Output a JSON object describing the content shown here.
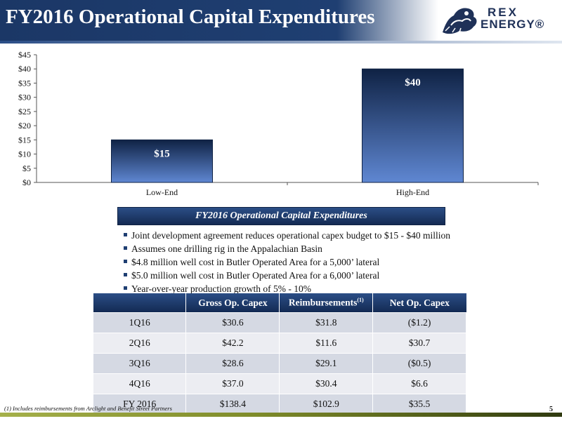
{
  "header": {
    "title": "FY2016 Operational Capital Expenditures",
    "logo_line1": "REX",
    "logo_line2": "ENERGY®"
  },
  "chart_data": {
    "type": "bar",
    "title": "",
    "xlabel": "",
    "ylabel": "",
    "categories": [
      "Low-End",
      "High-End"
    ],
    "values": [
      15,
      40
    ],
    "value_labels": [
      "$15",
      "$40"
    ],
    "ylim": [
      0,
      45
    ],
    "yticks": [
      0,
      5,
      10,
      15,
      20,
      25,
      30,
      35,
      40,
      45
    ],
    "ytick_labels": [
      "$0",
      "$5",
      "$10",
      "$15",
      "$20",
      "$25",
      "$30",
      "$35",
      "$40",
      "$45"
    ],
    "grid": false,
    "bar_color_top": "#0f2244",
    "bar_color_bottom": "#5f87d2"
  },
  "section": {
    "banner": "FY2016 Operational Capital Expenditures",
    "bullets": [
      "Joint development agreement reduces operational capex budget to $15 - $40 million",
      "Assumes one drilling rig in the Appalachian Basin",
      "$4.8 million well cost in Butler Operated Area for a 5,000’ lateral",
      "$5.0 million well cost in Butler Operated Area for a 6,000’ lateral",
      "Year-over-year production growth of 5% - 10%"
    ]
  },
  "table": {
    "headers": [
      "",
      "Gross Op. Capex",
      "Reimbursements",
      "Net Op. Capex"
    ],
    "reimb_sup": "(1)",
    "rows": [
      [
        "1Q16",
        "$30.6",
        "$31.8",
        "($1.2)"
      ],
      [
        "2Q16",
        "$42.2",
        "$11.6",
        "$30.7"
      ],
      [
        "3Q16",
        "$28.6",
        "$29.1",
        "($0.5)"
      ],
      [
        "4Q16",
        "$37.0",
        "$30.4",
        "$6.6"
      ],
      [
        "FY 2016",
        "$138.4",
        "$102.9",
        "$35.5"
      ]
    ]
  },
  "footer": {
    "footnote": "(1) Includes reimbursements from Arclight and Benefit Street Partners",
    "page_number": "5"
  }
}
